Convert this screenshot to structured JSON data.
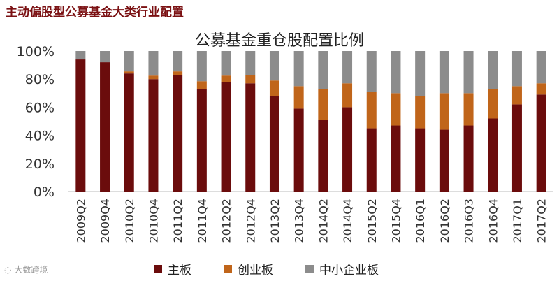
{
  "header": {
    "title": "主动偏股型公募基金大类行业配置"
  },
  "watermark": {
    "text": "大数跨境"
  },
  "chart_data": {
    "type": "bar",
    "stacked": true,
    "title": "公募基金重仓股配置比例",
    "categories": [
      "2009Q2",
      "2009Q4",
      "2010Q2",
      "2010Q4",
      "2011Q2",
      "2011Q4",
      "2012Q2",
      "2012Q4",
      "2013Q2",
      "2013Q4",
      "2014Q2",
      "2014Q4",
      "2015Q2",
      "2015Q4",
      "2016Q1",
      "2016Q2",
      "2016Q3",
      "2016Q4",
      "2017Q1",
      "2017Q2"
    ],
    "series": [
      {
        "name": "主板",
        "color": "#6b0c0c",
        "values": [
          94,
          92,
          84,
          80,
          83,
          73,
          78,
          77,
          68,
          59,
          51,
          60,
          45,
          47,
          45,
          44,
          47,
          52,
          62,
          69
        ]
      },
      {
        "name": "创业板",
        "color": "#c0651a",
        "values": [
          0,
          0,
          1.5,
          2.5,
          2.5,
          5.5,
          4.5,
          6,
          11,
          16,
          22,
          17,
          26,
          23,
          23,
          26,
          23,
          21,
          13,
          8
        ]
      },
      {
        "name": "中小企业板",
        "color": "#8c8c8c",
        "values": [
          6,
          8,
          14.5,
          17.5,
          14.5,
          21.5,
          17.5,
          17,
          21,
          25,
          27,
          23,
          29,
          30,
          32,
          30,
          30,
          27,
          25,
          23
        ]
      }
    ],
    "ylim": [
      0,
      100
    ],
    "yticks": [
      "0%",
      "20%",
      "40%",
      "60%",
      "80%",
      "100%"
    ],
    "legend_position": "bottom",
    "grid": false
  }
}
